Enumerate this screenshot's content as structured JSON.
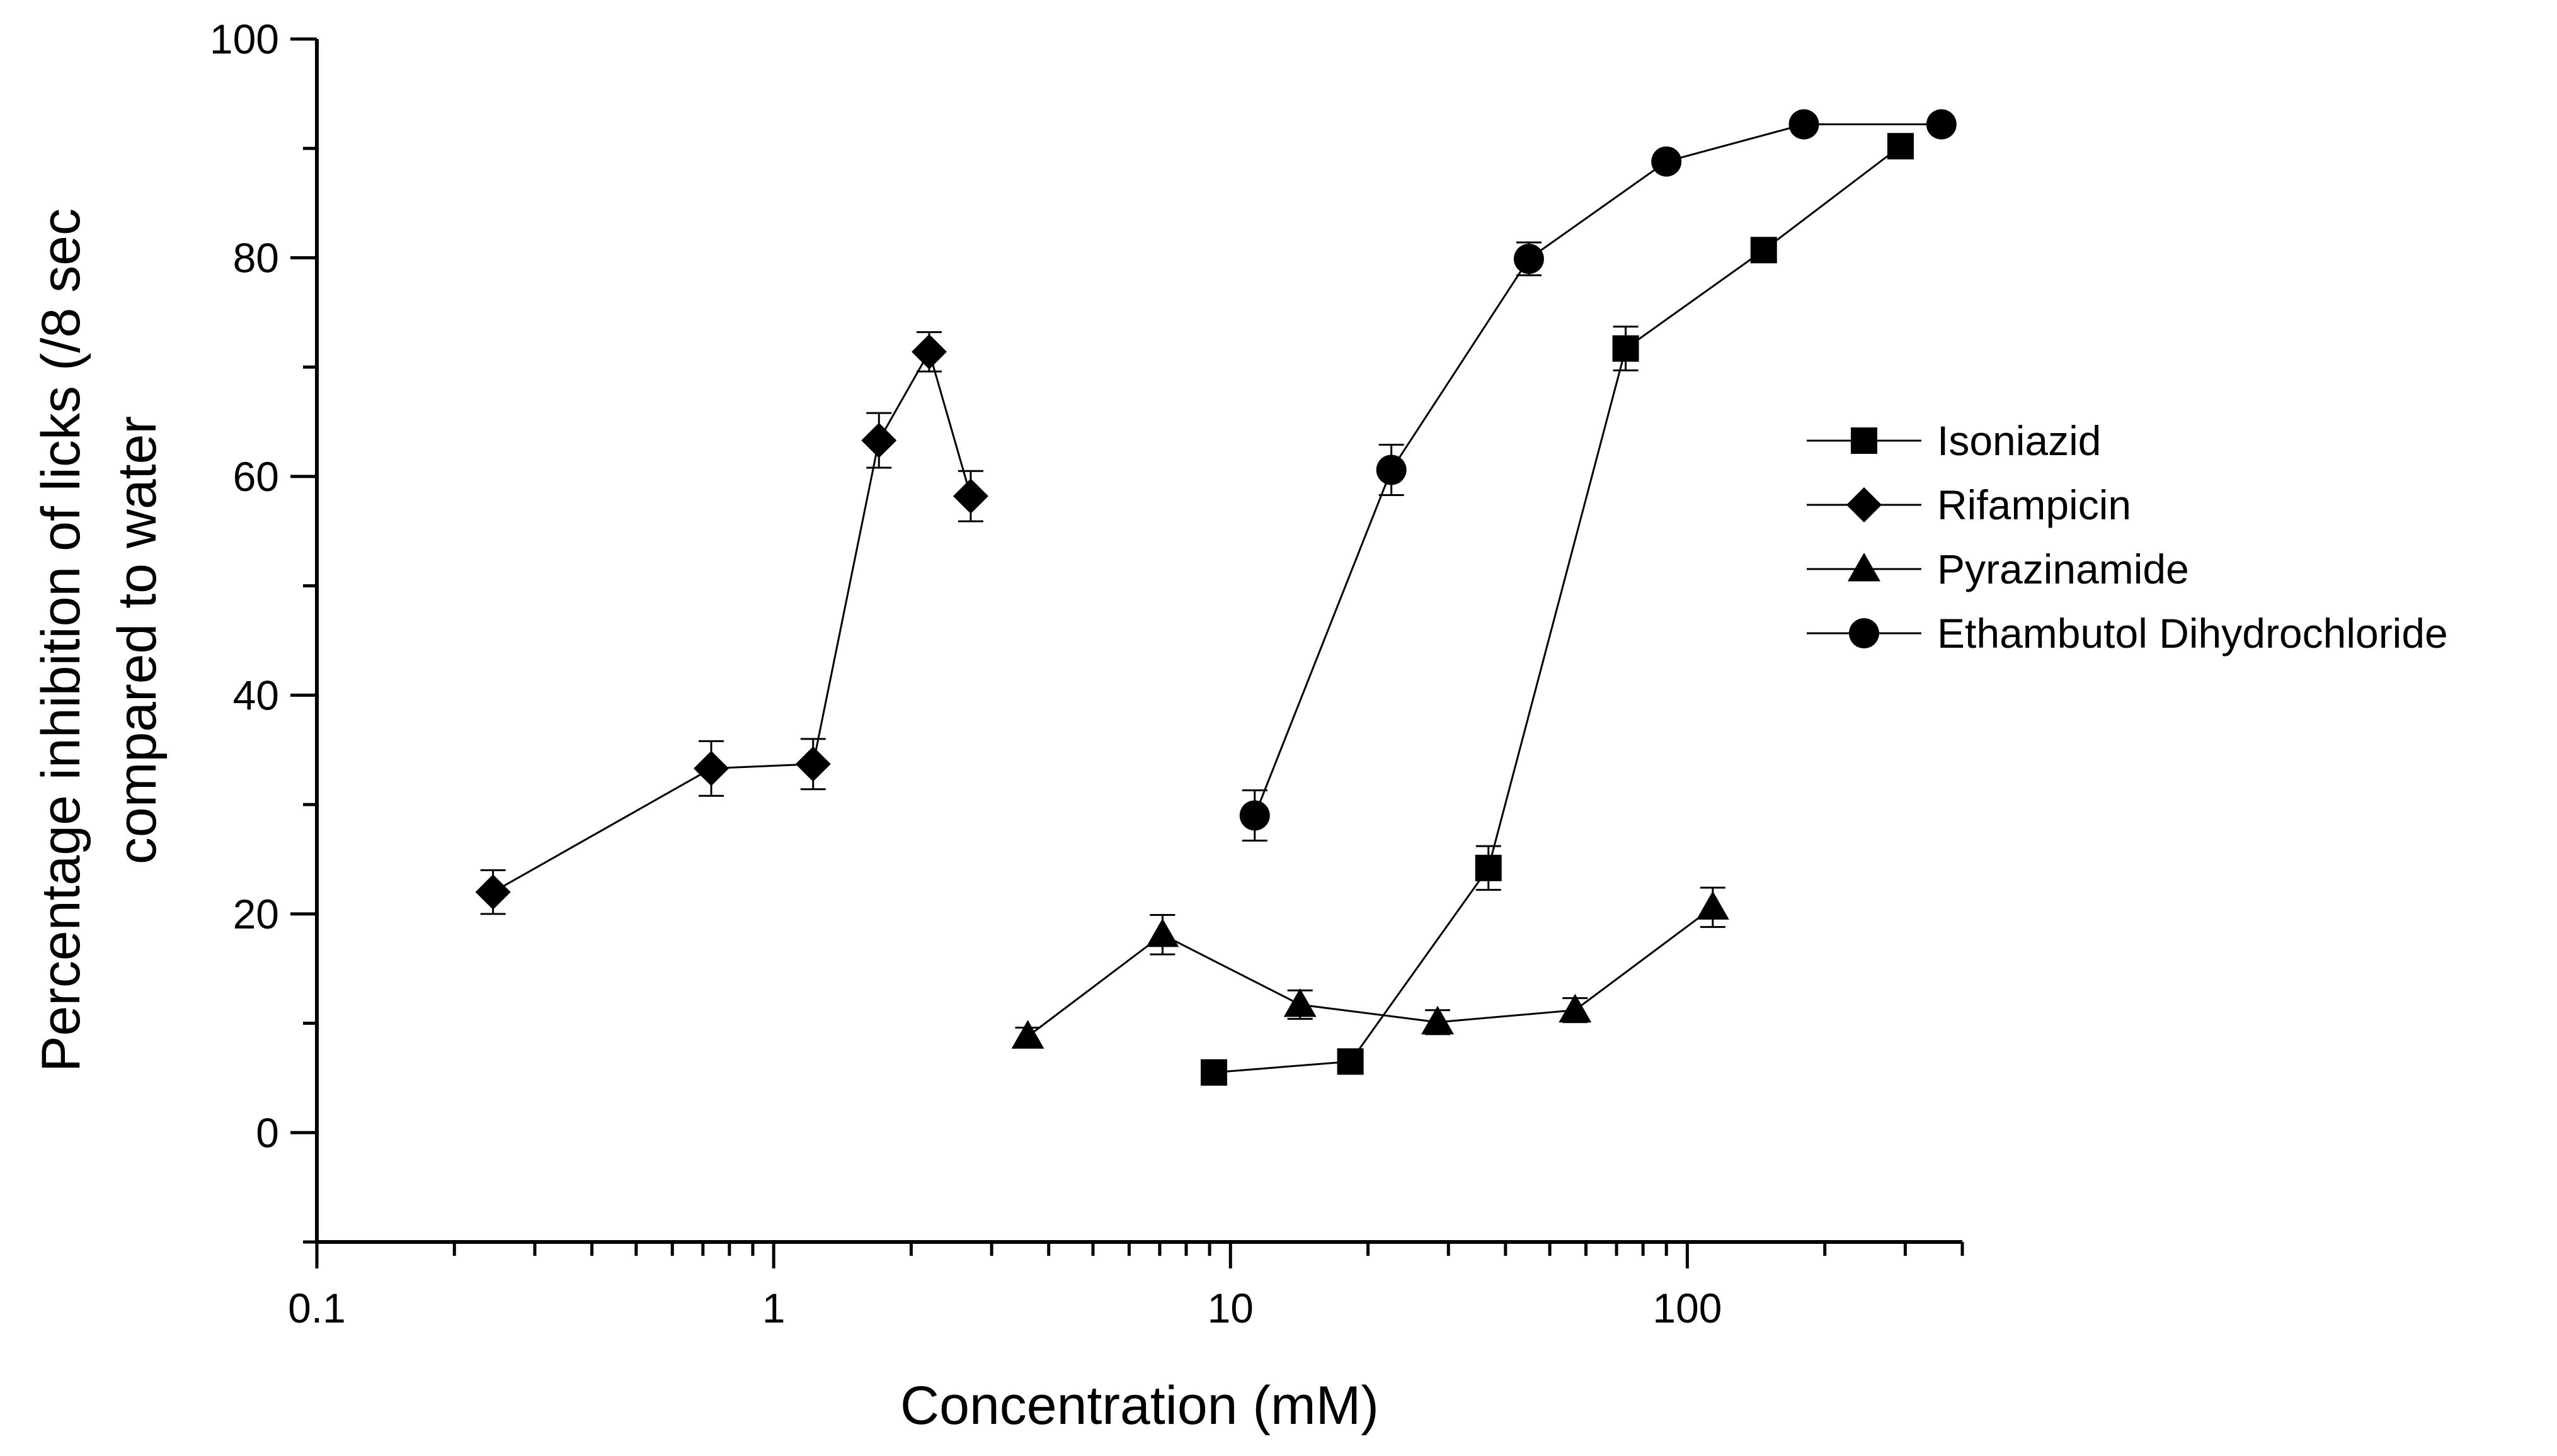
{
  "chart_data": {
    "type": "scatter",
    "title": "",
    "xlabel": "Concentration (mM)",
    "ylabel_lines": [
      "Percentage inhibition of licks (/8 sec",
      "compared to water"
    ],
    "xscale": "log",
    "xlim": [
      0.1,
      400
    ],
    "ylim": [
      -10,
      100
    ],
    "x_ticks": [
      0.1,
      1,
      10,
      100
    ],
    "x_tick_labels": [
      "0.1",
      "1",
      "10",
      "100"
    ],
    "y_ticks": [
      0,
      20,
      40,
      60,
      80,
      100
    ],
    "y_tick_labels": [
      "0",
      "20",
      "40",
      "60",
      "80",
      "100"
    ],
    "legend_position": "right",
    "series": [
      {
        "name": "Isoniazid",
        "marker": "square",
        "x": [
          9.2,
          18.3,
          36.7,
          73.3,
          147,
          293
        ],
        "y": [
          5.5,
          6.5,
          24.2,
          71.7,
          80.7,
          90.2
        ],
        "err": [
          1.0,
          1.0,
          2.0,
          2.0,
          0,
          0
        ]
      },
      {
        "name": "Rifampicin",
        "marker": "diamond",
        "x": [
          0.243,
          0.73,
          1.22,
          1.7,
          2.19,
          2.7
        ],
        "y": [
          22.0,
          33.3,
          33.7,
          63.3,
          71.4,
          58.2
        ],
        "err": [
          2.0,
          2.5,
          2.3,
          2.5,
          1.8,
          2.3
        ]
      },
      {
        "name": "Pyrazinamide",
        "marker": "triangle",
        "x": [
          3.6,
          7.1,
          14.2,
          28.4,
          56.8,
          113.7
        ],
        "y": [
          8.8,
          18.1,
          11.7,
          10.1,
          11.2,
          20.6
        ],
        "err": [
          0.8,
          1.8,
          1.3,
          1.1,
          1.1,
          1.8
        ]
      },
      {
        "name": "Ethambutol Dihydrochloride",
        "marker": "circle",
        "x": [
          11.3,
          22.5,
          45,
          90,
          180,
          360
        ],
        "y": [
          29.0,
          60.6,
          79.9,
          88.8,
          92.2,
          92.2
        ],
        "err": [
          2.3,
          2.3,
          1.5,
          0,
          0,
          0
        ]
      }
    ]
  }
}
